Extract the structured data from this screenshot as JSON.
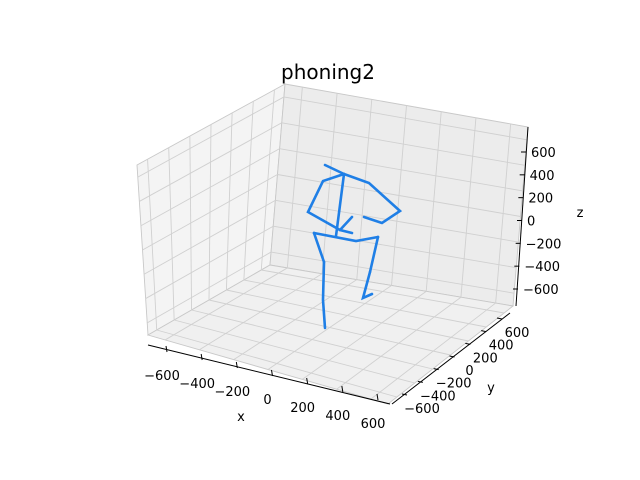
{
  "chart_data": {
    "type": "3d-line",
    "title": "phoning2",
    "xlabel": "x",
    "ylabel": "y",
    "zlabel": "z",
    "x_ticks": [
      "−600",
      "−400",
      "−200",
      "0",
      "200",
      "400",
      "600"
    ],
    "y_ticks": [
      "−600",
      "−400",
      "−200",
      "0",
      "200",
      "400",
      "600"
    ],
    "z_ticks": [
      "−600",
      "−400",
      "−200",
      "0",
      "200",
      "400",
      "600"
    ],
    "series_color": "#1f7fe6",
    "skeleton_segments": [
      {
        "name": "right-shin",
        "points": [
          [
            325,
            328
          ],
          [
            323,
            300
          ],
          [
            324,
            262
          ]
        ]
      },
      {
        "name": "right-thigh",
        "points": [
          [
            324,
            262
          ],
          [
            314,
            233
          ]
        ]
      },
      {
        "name": "hips",
        "points": [
          [
            314,
            233
          ],
          [
            356,
            241
          ],
          [
            378,
            237
          ]
        ]
      },
      {
        "name": "left-thigh",
        "points": [
          [
            378,
            237
          ],
          [
            370,
            272
          ]
        ]
      },
      {
        "name": "left-shin",
        "points": [
          [
            370,
            272
          ],
          [
            363,
            298
          ],
          [
            372,
            294
          ]
        ]
      },
      {
        "name": "spine",
        "points": [
          [
            336,
            236
          ],
          [
            344,
            174
          ]
        ]
      },
      {
        "name": "head",
        "points": [
          [
            344,
            174
          ],
          [
            325,
            165
          ]
        ]
      },
      {
        "name": "right-arm",
        "points": [
          [
            344,
            174
          ],
          [
            323,
            181
          ],
          [
            308,
            212
          ],
          [
            340,
            230
          ],
          [
            352,
            233
          ]
        ]
      },
      {
        "name": "phone-hand",
        "points": [
          [
            340,
            230
          ],
          [
            352,
            217
          ]
        ]
      },
      {
        "name": "left-arm",
        "points": [
          [
            344,
            174
          ],
          [
            369,
            183
          ],
          [
            400,
            211
          ],
          [
            382,
            223
          ],
          [
            364,
            217
          ]
        ]
      }
    ]
  }
}
